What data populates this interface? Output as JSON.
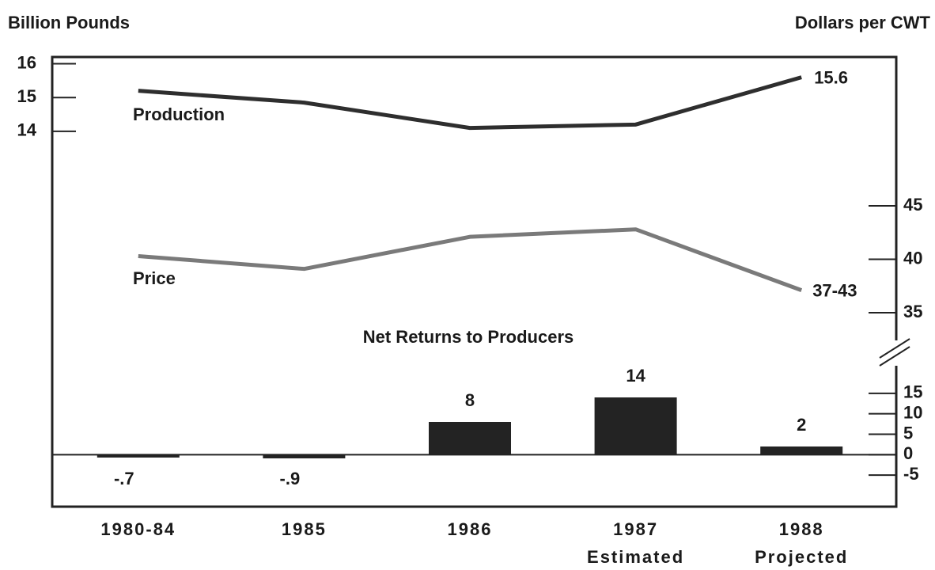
{
  "chart_data": [
    {
      "type": "line",
      "name": "Production",
      "y_label": "Billion Pounds",
      "color": "#2e2e2e",
      "categories": [
        "1980-84",
        "1985",
        "1986",
        "1987",
        "1988"
      ],
      "category_notes": [
        null,
        null,
        null,
        "Estimated",
        "Projected"
      ],
      "values": [
        15.2,
        14.85,
        14.1,
        14.2,
        15.6
      ],
      "value_labels": [
        null,
        null,
        null,
        null,
        "15.6"
      ],
      "ylim": [
        13.2,
        16.2
      ],
      "yticks": [
        14,
        15,
        16
      ]
    },
    {
      "type": "line",
      "name": "Price",
      "y_label": "Dollars per CWT",
      "color": "#7a7a7a",
      "values": [
        40.3,
        39.1,
        42.1,
        42.8,
        37.1
      ],
      "annotation": "37-43",
      "ylim": [
        33,
        47
      ],
      "yticks": [
        35,
        40,
        45
      ]
    },
    {
      "type": "bar",
      "title": "Net Returns to Producers",
      "color": "#232323",
      "values": [
        -0.7,
        -0.9,
        8,
        14,
        2
      ],
      "value_labels": [
        "-.7",
        "-.9",
        "8",
        "14",
        "2"
      ],
      "ylim": [
        -10,
        20
      ],
      "yticks": [
        -5,
        0,
        5,
        10,
        15
      ]
    }
  ]
}
